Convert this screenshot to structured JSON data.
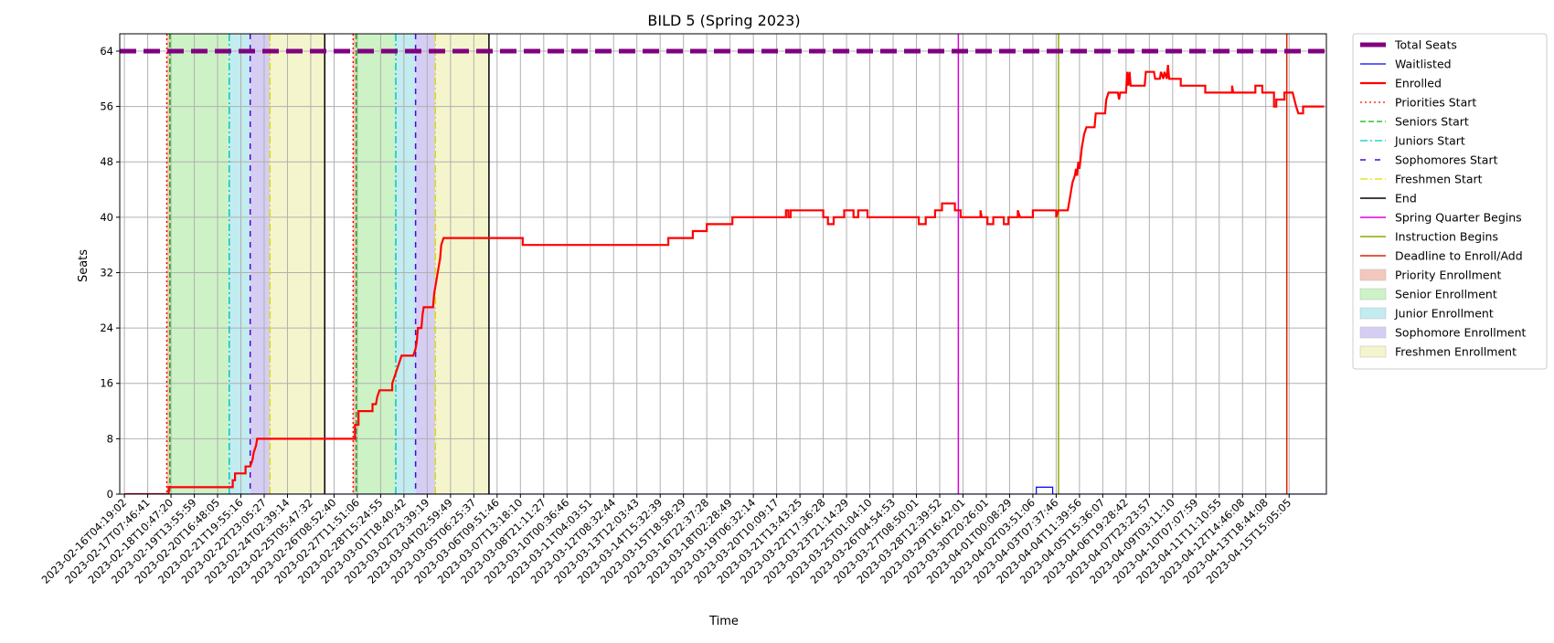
{
  "chart_data": {
    "type": "line",
    "title": "BILD 5 (Spring 2023)",
    "xlabel": "Time",
    "ylabel": "Seats",
    "ylim": [
      0,
      66.5
    ],
    "grid": true,
    "legend_position": "outside right, top",
    "yticks": [
      0,
      8,
      16,
      24,
      32,
      40,
      48,
      56,
      64
    ],
    "xtick_labels": [
      "2023-02-16T04:19:02",
      "2023-02-17T07:46:41",
      "2023-02-18T10:47:20",
      "2023-02-19T13:55:59",
      "2023-02-20T16:48:05",
      "2023-02-21T19:55:16",
      "2023-02-22T23:05:27",
      "2023-02-24T02:39:14",
      "2023-02-25T05:47:32",
      "2023-02-26T08:52:40",
      "2023-02-27T11:51:06",
      "2023-02-28T15:24:55",
      "2023-03-01T18:40:42",
      "2023-03-02T23:39:19",
      "2023-03-04T02:59:49",
      "2023-03-05T06:25:37",
      "2023-03-06T09:51:46",
      "2023-03-07T13:18:10",
      "2023-03-08T21:11:27",
      "2023-03-10T00:36:46",
      "2023-03-11T04:03:51",
      "2023-03-12T08:32:44",
      "2023-03-13T12:03:43",
      "2023-03-14T15:32:39",
      "2023-03-15T18:58:29",
      "2023-03-16T22:37:28",
      "2023-03-18T02:28:49",
      "2023-03-19T06:32:14",
      "2023-03-20T10:09:17",
      "2023-03-21T13:43:25",
      "2023-03-22T17:36:28",
      "2023-03-23T21:14:29",
      "2023-03-25T01:04:10",
      "2023-03-26T04:54:53",
      "2023-03-27T08:50:01",
      "2023-03-28T12:39:52",
      "2023-03-29T16:42:01",
      "2023-03-30T20:26:01",
      "2023-04-01T00:08:29",
      "2023-04-02T03:51:06",
      "2023-04-03T07:37:46",
      "2023-04-04T11:39:56",
      "2023-04-05T15:36:07",
      "2023-04-06T19:28:42",
      "2023-04-07T23:23:57",
      "2023-04-09T03:11:10",
      "2023-04-10T07:07:59",
      "2023-04-11T11:10:55",
      "2023-04-12T14:46:08",
      "2023-04-13T18:44:08",
      "2023-04-15T15:05:05"
    ],
    "total_seats": 64,
    "series": [
      {
        "name": "Enrolled",
        "color": "#ff0000",
        "points": [
          [
            0.0,
            0
          ],
          [
            1.9,
            0
          ],
          [
            1.9,
            1
          ],
          [
            4.65,
            1
          ],
          [
            4.65,
            2
          ],
          [
            4.75,
            2
          ],
          [
            4.75,
            3
          ],
          [
            5.2,
            3
          ],
          [
            5.2,
            4
          ],
          [
            5.4,
            4
          ],
          [
            5.5,
            5
          ],
          [
            5.55,
            6
          ],
          [
            5.65,
            7
          ],
          [
            5.7,
            8
          ],
          [
            9.9,
            8
          ],
          [
            9.9,
            10
          ],
          [
            10.05,
            10
          ],
          [
            10.05,
            12
          ],
          [
            10.65,
            12
          ],
          [
            10.65,
            13
          ],
          [
            10.8,
            13
          ],
          [
            10.85,
            14
          ],
          [
            10.95,
            15
          ],
          [
            11.5,
            15
          ],
          [
            11.5,
            16
          ],
          [
            11.6,
            17
          ],
          [
            11.7,
            18
          ],
          [
            11.8,
            19
          ],
          [
            11.9,
            20
          ],
          [
            12.4,
            20
          ],
          [
            12.5,
            21
          ],
          [
            12.55,
            22
          ],
          [
            12.6,
            24
          ],
          [
            12.75,
            24
          ],
          [
            12.8,
            26
          ],
          [
            12.85,
            27
          ],
          [
            13.25,
            27
          ],
          [
            13.3,
            29
          ],
          [
            13.35,
            30
          ],
          [
            13.45,
            32
          ],
          [
            13.55,
            34
          ],
          [
            13.6,
            36
          ],
          [
            13.7,
            37
          ],
          [
            17.1,
            37
          ],
          [
            17.1,
            36
          ],
          [
            23.35,
            36
          ],
          [
            23.35,
            37
          ],
          [
            24.4,
            37
          ],
          [
            24.4,
            38
          ],
          [
            25.0,
            38
          ],
          [
            25.0,
            39
          ],
          [
            26.1,
            39
          ],
          [
            26.1,
            40
          ],
          [
            28.4,
            40
          ],
          [
            28.4,
            41
          ],
          [
            28.5,
            41
          ],
          [
            28.5,
            40
          ],
          [
            28.6,
            40
          ],
          [
            28.6,
            41
          ],
          [
            30.0,
            41
          ],
          [
            30.0,
            40
          ],
          [
            30.2,
            40
          ],
          [
            30.2,
            39
          ],
          [
            30.45,
            39
          ],
          [
            30.45,
            40
          ],
          [
            30.9,
            40
          ],
          [
            30.9,
            41
          ],
          [
            31.3,
            41
          ],
          [
            31.3,
            40
          ],
          [
            31.5,
            40
          ],
          [
            31.5,
            41
          ],
          [
            31.9,
            41
          ],
          [
            31.9,
            40
          ],
          [
            34.1,
            40
          ],
          [
            34.1,
            39
          ],
          [
            34.4,
            39
          ],
          [
            34.4,
            40
          ],
          [
            34.8,
            40
          ],
          [
            34.8,
            41
          ],
          [
            35.1,
            41
          ],
          [
            35.1,
            42
          ],
          [
            35.65,
            42
          ],
          [
            35.65,
            41
          ],
          [
            35.9,
            41
          ],
          [
            35.9,
            40
          ],
          [
            36.75,
            40
          ],
          [
            36.75,
            41
          ],
          [
            36.8,
            40
          ],
          [
            37.05,
            40
          ],
          [
            37.05,
            39
          ],
          [
            37.3,
            39
          ],
          [
            37.3,
            40
          ],
          [
            37.75,
            40
          ],
          [
            37.75,
            39
          ],
          [
            37.95,
            39
          ],
          [
            37.95,
            40
          ],
          [
            38.35,
            40
          ],
          [
            38.35,
            41
          ],
          [
            38.45,
            40
          ],
          [
            39.0,
            40
          ],
          [
            39.0,
            41
          ],
          [
            40.0,
            41
          ],
          [
            40.0,
            40
          ],
          [
            40.1,
            41
          ],
          [
            40.5,
            41
          ],
          [
            40.6,
            43
          ],
          [
            40.7,
            45
          ],
          [
            40.8,
            46
          ],
          [
            40.85,
            47
          ],
          [
            40.9,
            46
          ],
          [
            40.95,
            48
          ],
          [
            41.0,
            47
          ],
          [
            41.1,
            50
          ],
          [
            41.2,
            52
          ],
          [
            41.3,
            53
          ],
          [
            41.65,
            53
          ],
          [
            41.7,
            55
          ],
          [
            42.1,
            55
          ],
          [
            42.15,
            57
          ],
          [
            42.25,
            58
          ],
          [
            42.65,
            58
          ],
          [
            42.7,
            57
          ],
          [
            42.75,
            58
          ],
          [
            43.0,
            58
          ],
          [
            43.05,
            61
          ],
          [
            43.1,
            59
          ],
          [
            43.15,
            61
          ],
          [
            43.2,
            59
          ],
          [
            43.8,
            59
          ],
          [
            43.85,
            61
          ],
          [
            44.2,
            61
          ],
          [
            44.25,
            60
          ],
          [
            44.45,
            60
          ],
          [
            44.5,
            61
          ],
          [
            44.6,
            60
          ],
          [
            44.65,
            61
          ],
          [
            44.75,
            60
          ],
          [
            44.8,
            62
          ],
          [
            44.85,
            60
          ],
          [
            45.35,
            60
          ],
          [
            45.35,
            59
          ],
          [
            46.4,
            59
          ],
          [
            46.4,
            58
          ],
          [
            47.55,
            58
          ],
          [
            47.55,
            59
          ],
          [
            47.6,
            58
          ],
          [
            48.55,
            58
          ],
          [
            48.55,
            59
          ],
          [
            48.85,
            59
          ],
          [
            48.85,
            58
          ],
          [
            49.35,
            58
          ],
          [
            49.35,
            56
          ],
          [
            49.45,
            56
          ],
          [
            49.45,
            57
          ],
          [
            49.8,
            57
          ],
          [
            49.8,
            58
          ],
          [
            50.15,
            58
          ],
          [
            50.3,
            56
          ],
          [
            50.4,
            55
          ],
          [
            50.6,
            55
          ],
          [
            50.6,
            56
          ],
          [
            51.5,
            56
          ]
        ]
      },
      {
        "name": "Waitlisted",
        "color": "#0000ff",
        "points": [
          [
            0.0,
            0
          ],
          [
            39.15,
            0
          ],
          [
            39.15,
            1
          ],
          [
            39.85,
            1
          ],
          [
            39.85,
            0
          ],
          [
            51.5,
            0
          ]
        ]
      }
    ],
    "vertical_markers": [
      {
        "label": "Priorities Start",
        "x": 1.82,
        "color": "#ff0000",
        "dash": "2,3"
      },
      {
        "label": "Priorities Start",
        "x": 9.82,
        "color": "#ff0000",
        "dash": "2,3"
      },
      {
        "label": "Seniors Start",
        "x": 1.95,
        "color": "#00bb00",
        "dash": "6,3"
      },
      {
        "label": "Seniors Start",
        "x": 9.95,
        "color": "#00bb00",
        "dash": "6,3"
      },
      {
        "label": "Juniors Start",
        "x": 4.5,
        "color": "#00c8c8",
        "dash": "8,3,2,3"
      },
      {
        "label": "Juniors Start",
        "x": 11.65,
        "color": "#00c8c8",
        "dash": "8,3,2,3"
      },
      {
        "label": "Sophomores Start",
        "x": 5.4,
        "color": "#5500dd",
        "dash": "6,6"
      },
      {
        "label": "Sophomores Start",
        "x": 12.5,
        "color": "#5500dd",
        "dash": "6,6"
      },
      {
        "label": "Freshmen Start",
        "x": 6.25,
        "color": "#dddd00",
        "dash": "8,3,2,3"
      },
      {
        "label": "Freshmen Start",
        "x": 13.35,
        "color": "#dddd00",
        "dash": "8,3,2,3"
      },
      {
        "label": "End",
        "x": 8.6,
        "color": "#000000",
        "dash": ""
      },
      {
        "label": "End",
        "x": 15.65,
        "color": "#000000",
        "dash": ""
      },
      {
        "label": "Spring Quarter Begins",
        "x": 35.8,
        "color": "#dd00dd",
        "dash": ""
      },
      {
        "label": "Instruction Begins",
        "x": 40.1,
        "color": "#88aa00",
        "dash": ""
      },
      {
        "label": "Deadline to Enroll/Add",
        "x": 49.9,
        "color": "#dd2200",
        "dash": ""
      }
    ],
    "shaded_regions": [
      {
        "label": "Priority Enrollment",
        "x0": 1.82,
        "x1": 1.95,
        "color": "#f4c7bd"
      },
      {
        "label": "Priority Enrollment",
        "x0": 9.82,
        "x1": 9.95,
        "color": "#f4c7bd"
      },
      {
        "label": "Senior Enrollment",
        "x0": 1.95,
        "x1": 4.5,
        "color": "#cdf2c6"
      },
      {
        "label": "Senior Enrollment",
        "x0": 9.95,
        "x1": 11.65,
        "color": "#cdf2c6"
      },
      {
        "label": "Junior Enrollment",
        "x0": 4.5,
        "x1": 5.4,
        "color": "#c2ecef"
      },
      {
        "label": "Junior Enrollment",
        "x0": 11.65,
        "x1": 12.5,
        "color": "#c2ecef"
      },
      {
        "label": "Sophomore Enrollment",
        "x0": 5.4,
        "x1": 6.25,
        "color": "#d6cdf3"
      },
      {
        "label": "Sophomore Enrollment",
        "x0": 12.5,
        "x1": 13.35,
        "color": "#d6cdf3"
      },
      {
        "label": "Freshmen Enrollment",
        "x0": 6.25,
        "x1": 8.6,
        "color": "#f5f5cd"
      },
      {
        "label": "Freshmen Enrollment",
        "x0": 13.35,
        "x1": 15.65,
        "color": "#f5f5cd"
      }
    ],
    "legend": [
      {
        "label": "Total Seats",
        "kind": "line",
        "color": "#800080",
        "dash": "",
        "width": 5
      },
      {
        "label": "Waitlisted",
        "kind": "line",
        "color": "#0000ff",
        "dash": "",
        "width": 1.2
      },
      {
        "label": "Enrolled",
        "kind": "line",
        "color": "#ff0000",
        "dash": "",
        "width": 2.2
      },
      {
        "label": "Priorities Start",
        "kind": "line",
        "color": "#ff0000",
        "dash": "2,3",
        "width": 1.2
      },
      {
        "label": "Seniors Start",
        "kind": "line",
        "color": "#00bb00",
        "dash": "6,3",
        "width": 1.2
      },
      {
        "label": "Juniors Start",
        "kind": "line",
        "color": "#00c8c8",
        "dash": "8,3,2,3",
        "width": 1.2
      },
      {
        "label": "Sophomores Start",
        "kind": "line",
        "color": "#5500dd",
        "dash": "6,10",
        "width": 1.6
      },
      {
        "label": "Freshmen Start",
        "kind": "line",
        "color": "#dddd00",
        "dash": "8,3,2,3",
        "width": 1.2
      },
      {
        "label": "End",
        "kind": "line",
        "color": "#000000",
        "dash": "",
        "width": 1.6
      },
      {
        "label": "Spring Quarter Begins",
        "kind": "line",
        "color": "#dd00dd",
        "dash": "",
        "width": 1.6
      },
      {
        "label": "Instruction Begins",
        "kind": "line",
        "color": "#88aa00",
        "dash": "",
        "width": 1.6
      },
      {
        "label": "Deadline to Enroll/Add",
        "kind": "line",
        "color": "#dd2200",
        "dash": "",
        "width": 1.6
      },
      {
        "label": "Priority Enrollment",
        "kind": "patch",
        "color": "#f4c7bd"
      },
      {
        "label": "Senior Enrollment",
        "kind": "patch",
        "color": "#cdf2c6"
      },
      {
        "label": "Junior Enrollment",
        "kind": "patch",
        "color": "#c2ecef"
      },
      {
        "label": "Sophomore Enrollment",
        "kind": "patch",
        "color": "#d6cdf3"
      },
      {
        "label": "Freshmen Enrollment",
        "kind": "patch",
        "color": "#f5f5cd"
      }
    ]
  }
}
